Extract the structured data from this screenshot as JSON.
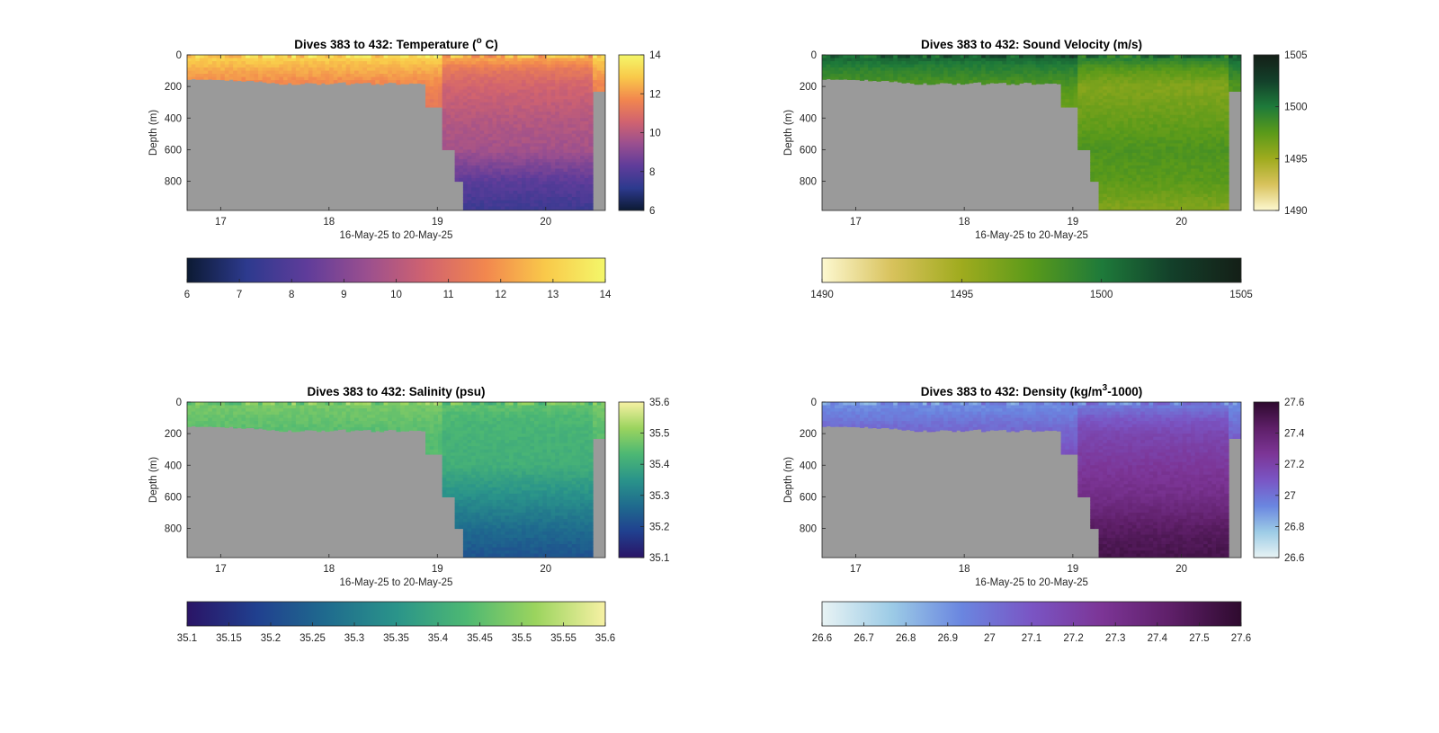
{
  "chart_data": [
    {
      "type": "heatmap",
      "title": "Dives 383 to 432: Temperature (",
      "title_sup": "o",
      "title_suffix": " C)",
      "xlabel": "16-May-25 to 20-May-25",
      "ylabel": "Depth (m)",
      "xlim": [
        16.69,
        20.55
      ],
      "ylim": [
        985,
        0
      ],
      "x_ticks": [
        "17",
        "18",
        "19",
        "20"
      ],
      "x_tick_values": [
        17,
        18,
        19,
        20
      ],
      "y_ticks": [
        "0",
        "200",
        "400",
        "600",
        "800"
      ],
      "y_tick_values": [
        0,
        200,
        400,
        600,
        800
      ],
      "colorbar_ticks": [
        "6",
        "8",
        "10",
        "12",
        "14"
      ],
      "colorbar_ticks_h": [
        "6",
        "7",
        "8",
        "9",
        "10",
        "11",
        "12",
        "13",
        "14"
      ],
      "clim": [
        6,
        14
      ],
      "colors": [
        "#0c1a33",
        "#2d3a8e",
        "#5f3c9a",
        "#9a4f8f",
        "#d1636f",
        "#f2874e",
        "#f9c94a",
        "#f4f76a"
      ],
      "profile": {
        "depths": [
          0,
          40,
          100,
          200,
          400,
          600,
          800,
          985
        ],
        "values": [
          12.6,
          12.0,
          11.2,
          10.6,
          10.0,
          9.6,
          8.2,
          7.5
        ]
      },
      "no_data_color": "#9a9a9a"
    },
    {
      "type": "heatmap",
      "title": "Dives 383 to 432: Sound Velocity (m/s)",
      "xlabel": "16-May-25 to 20-May-25",
      "ylabel": "Depth (m)",
      "xlim": [
        16.69,
        20.55
      ],
      "ylim": [
        985,
        0
      ],
      "x_ticks": [
        "17",
        "18",
        "19",
        "20"
      ],
      "x_tick_values": [
        17,
        18,
        19,
        20
      ],
      "y_ticks": [
        "0",
        "200",
        "400",
        "600",
        "800"
      ],
      "y_tick_values": [
        0,
        200,
        400,
        600,
        800
      ],
      "colorbar_ticks": [
        "1490",
        "1495",
        "1500",
        "1505"
      ],
      "colorbar_ticks_h": [
        "1490",
        "1495",
        "1500",
        "1505"
      ],
      "clim": [
        1490,
        1505
      ],
      "colors": [
        "#fdf8d0",
        "#d8c25c",
        "#9fab1e",
        "#5a9a1a",
        "#1e7a3a",
        "#13402a",
        "#141f17"
      ],
      "profile": {
        "depths": [
          0,
          40,
          100,
          200,
          400,
          600,
          800,
          985
        ],
        "values": [
          1500.5,
          1499.0,
          1497.5,
          1496.0,
          1497.0,
          1498.0,
          1497.5,
          1496.0
        ]
      },
      "no_data_color": "#9a9a9a"
    },
    {
      "type": "heatmap",
      "title": "Dives 383 to 432: Salinity (psu)",
      "xlabel": "16-May-25 to 20-May-25",
      "ylabel": "Depth (m)",
      "xlim": [
        16.69,
        20.55
      ],
      "ylim": [
        985,
        0
      ],
      "x_ticks": [
        "17",
        "18",
        "19",
        "20"
      ],
      "x_tick_values": [
        17,
        18,
        19,
        20
      ],
      "y_ticks": [
        "0",
        "200",
        "400",
        "600",
        "800"
      ],
      "y_tick_values": [
        0,
        200,
        400,
        600,
        800
      ],
      "colorbar_ticks": [
        "35.1",
        "35.2",
        "35.3",
        "35.4",
        "35.5",
        "35.6"
      ],
      "colorbar_ticks_h": [
        "35.1",
        "35.15",
        "35.2",
        "35.25",
        "35.3",
        "35.35",
        "35.4",
        "35.45",
        "35.5",
        "35.55",
        "35.6"
      ],
      "clim": [
        35.1,
        35.6
      ],
      "colors": [
        "#2a1466",
        "#20408f",
        "#1f6b8e",
        "#2a948a",
        "#4db873",
        "#9bd45e",
        "#f7f1a4"
      ],
      "profile": {
        "depths": [
          0,
          40,
          100,
          200,
          400,
          600,
          800,
          985
        ],
        "values": [
          35.46,
          35.45,
          35.43,
          35.42,
          35.41,
          35.34,
          35.27,
          35.22
        ]
      },
      "no_data_color": "#9a9a9a"
    },
    {
      "type": "heatmap",
      "title": "Dives 383 to 432: Density (kg/m",
      "title_sup": "3",
      "title_suffix": "-1000)",
      "xlabel": "16-May-25 to 20-May-25",
      "ylabel": "Depth (m)",
      "xlim": [
        16.69,
        20.55
      ],
      "ylim": [
        985,
        0
      ],
      "x_ticks": [
        "17",
        "18",
        "19",
        "20"
      ],
      "x_tick_values": [
        17,
        18,
        19,
        20
      ],
      "y_ticks": [
        "0",
        "200",
        "400",
        "600",
        "800"
      ],
      "y_tick_values": [
        0,
        200,
        400,
        600,
        800
      ],
      "colorbar_ticks": [
        "26.6",
        "26.8",
        "27",
        "27.2",
        "27.4",
        "27.6"
      ],
      "colorbar_ticks_h": [
        "26.6",
        "26.7",
        "26.8",
        "26.9",
        "27",
        "27.1",
        "27.2",
        "27.3",
        "27.4",
        "27.5",
        "27.6"
      ],
      "clim": [
        26.6,
        27.6
      ],
      "colors": [
        "#e8f3f4",
        "#9ccbe6",
        "#6a86e0",
        "#7a55c4",
        "#7c3596",
        "#5e1f68",
        "#2e0a2e"
      ],
      "profile": {
        "depths": [
          0,
          40,
          100,
          200,
          400,
          600,
          800,
          985
        ],
        "values": [
          26.95,
          27.0,
          27.08,
          27.17,
          27.25,
          27.32,
          27.45,
          27.52
        ]
      },
      "no_data_color": "#9a9a9a"
    }
  ]
}
